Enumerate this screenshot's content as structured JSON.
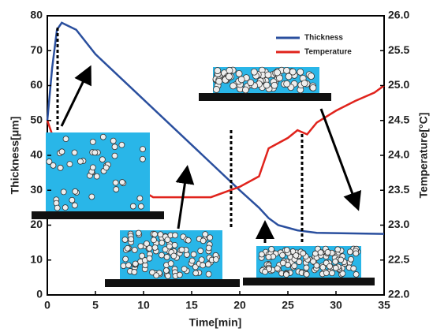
{
  "chart_data": {
    "type": "line",
    "xlabel": "Time[min]",
    "ylabel": "Thickness[μm]",
    "y2label": "Temperature[°C]",
    "xlim": [
      0,
      35
    ],
    "xticks": [
      0,
      5,
      10,
      15,
      20,
      25,
      30,
      35
    ],
    "ylim": [
      0,
      80
    ],
    "yticks": [
      0,
      10,
      20,
      30,
      40,
      50,
      60,
      70,
      80
    ],
    "y2lim": [
      22,
      26
    ],
    "y2ticks": [
      {
        "value": 22,
        "label": "22.0"
      },
      22.5,
      {
        "value": 23,
        "label": "23.0"
      },
      23.5,
      {
        "value": 24,
        "label": "24.0"
      },
      24.5,
      {
        "value": 25,
        "label": "25.0"
      },
      25.5,
      {
        "value": 26,
        "label": "26.0"
      }
    ],
    "legend": "upper right",
    "series": [
      {
        "name": "Thickness",
        "color": "#2a4f9e",
        "x": [
          0,
          0.5,
          1,
          1.5,
          3,
          5,
          10,
          15,
          20,
          22,
          23,
          24,
          26,
          28,
          35
        ],
        "values": [
          50,
          65,
          76,
          78,
          76,
          69,
          56,
          43,
          30,
          25,
          22,
          20,
          18.5,
          17.8,
          17.5
        ]
      },
      {
        "name": "Temperature",
        "color": "#e0231c",
        "axis": "y2",
        "x": [
          0,
          0.5,
          1,
          11,
          14,
          17,
          20,
          22,
          23,
          25,
          26,
          27,
          28,
          30,
          32,
          34,
          35
        ],
        "values": [
          24.5,
          24.3,
          24.2,
          23.4,
          23.4,
          23.4,
          23.55,
          23.7,
          24.1,
          24.25,
          24.36,
          24.3,
          24.47,
          24.64,
          24.78,
          24.9,
          25.0
        ]
      }
    ]
  }
}
